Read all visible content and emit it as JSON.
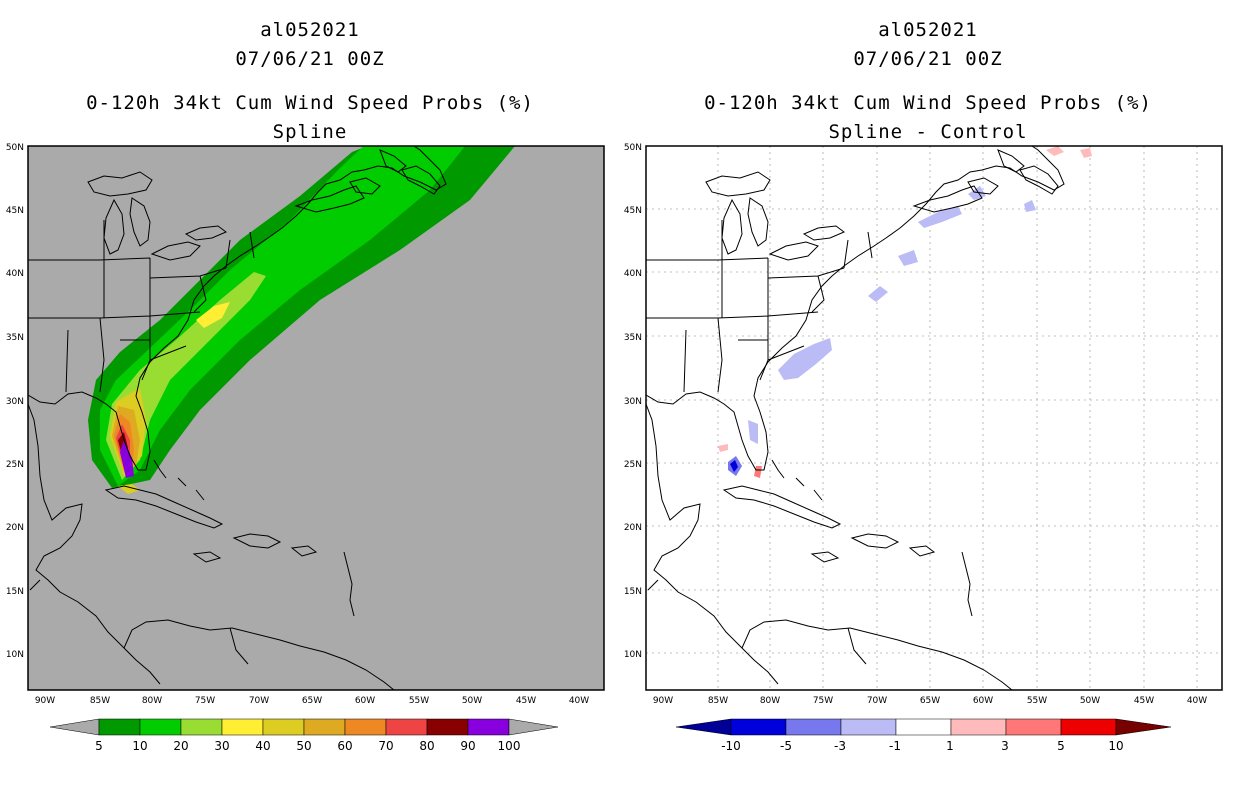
{
  "left_panel": {
    "storm_id": "al052021",
    "date": "07/06/21 00Z",
    "title": "0-120h 34kt Cum Wind Speed Probs (%)",
    "subtitle": "Spline",
    "lat_ticks": [
      "50N",
      "45N",
      "40N",
      "35N",
      "30N",
      "25N",
      "20N",
      "15N",
      "10N"
    ],
    "lon_ticks": [
      "90W",
      "85W",
      "80W",
      "75W",
      "70W",
      "65W",
      "60W",
      "55W",
      "50W",
      "45W",
      "40W"
    ],
    "colorbar": {
      "labels": [
        "5",
        "10",
        "20",
        "30",
        "40",
        "50",
        "60",
        "70",
        "80",
        "90",
        "100"
      ],
      "colors": [
        "#009900",
        "#00cc00",
        "#99dd33",
        "#ffee33",
        "#ddcc22",
        "#ddaa22",
        "#ee8822",
        "#ee4444",
        "#880000",
        "#8800dd"
      ],
      "end_color": "#aaaaaa"
    },
    "map_colors": {
      "background": "#aaaaaa",
      "coast": "#000000"
    }
  },
  "right_panel": {
    "storm_id": "al052021",
    "date": "07/06/21 00Z",
    "title": "0-120h 34kt Cum Wind Speed Probs (%)",
    "subtitle": "Spline - Control",
    "lat_ticks": [
      "50N",
      "45N",
      "40N",
      "35N",
      "30N",
      "25N",
      "20N",
      "15N",
      "10N"
    ],
    "lon_ticks": [
      "90W",
      "85W",
      "80W",
      "75W",
      "70W",
      "65W",
      "60W",
      "55W",
      "50W",
      "45W",
      "40W"
    ],
    "colorbar": {
      "labels": [
        "-10",
        "-5",
        "-3",
        "-1",
        "1",
        "3",
        "5",
        "10"
      ],
      "colors": [
        "#0000dd",
        "#7777ee",
        "#bbbbf5",
        "#ffffff",
        "#ffbbbb",
        "#ff7777",
        "#ee0000"
      ],
      "left_end": "#000099",
      "right_end": "#770000"
    },
    "map_colors": {
      "background": "#ffffff",
      "grid": "#aaaaaa",
      "coast": "#000000"
    }
  }
}
